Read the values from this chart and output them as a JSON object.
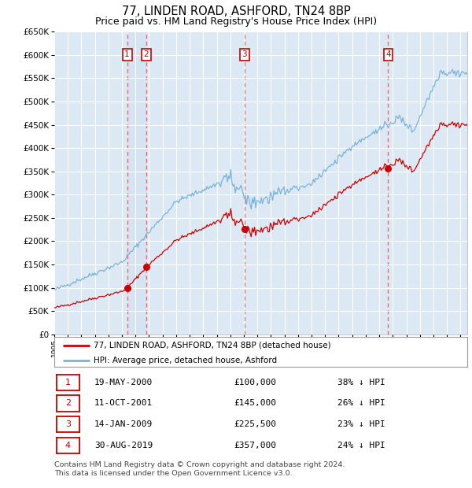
{
  "title": "77, LINDEN ROAD, ASHFORD, TN24 8BP",
  "subtitle": "Price paid vs. HM Land Registry's House Price Index (HPI)",
  "title_fontsize": 10.5,
  "subtitle_fontsize": 9,
  "background_color": "#ffffff",
  "plot_bg_color": "#dce9f5",
  "grid_color": "#ffffff",
  "hpi_line_color": "#7ab3d8",
  "price_line_color": "#cc0000",
  "marker_color": "#cc0000",
  "vline_color": "#ff5555",
  "vspan_color": "#c8ddf0",
  "ylim": [
    0,
    650000
  ],
  "ytick_step": 50000,
  "transactions": [
    {
      "num": 1,
      "date_label": "19-MAY-2000",
      "date_x": 2000.38,
      "price": 100000,
      "price_str": "£100,000",
      "pct": "38%",
      "dir": "↓"
    },
    {
      "num": 2,
      "date_label": "11-OCT-2001",
      "date_x": 2001.78,
      "price": 145000,
      "price_str": "£145,000",
      "pct": "26%",
      "dir": "↓"
    },
    {
      "num": 3,
      "date_label": "14-JAN-2009",
      "date_x": 2009.04,
      "price": 225500,
      "price_str": "£225,500",
      "pct": "23%",
      "dir": "↓"
    },
    {
      "num": 4,
      "date_label": "30-AUG-2019",
      "date_x": 2019.66,
      "price": 357000,
      "price_str": "£357,000",
      "pct": "24%",
      "dir": "↓"
    }
  ],
  "legend_label_price": "77, LINDEN ROAD, ASHFORD, TN24 8BP (detached house)",
  "legend_label_hpi": "HPI: Average price, detached house, Ashford",
  "footer_line1": "Contains HM Land Registry data © Crown copyright and database right 2024.",
  "footer_line2": "This data is licensed under the Open Government Licence v3.0.",
  "xmin": 1995.0,
  "xmax": 2025.5
}
